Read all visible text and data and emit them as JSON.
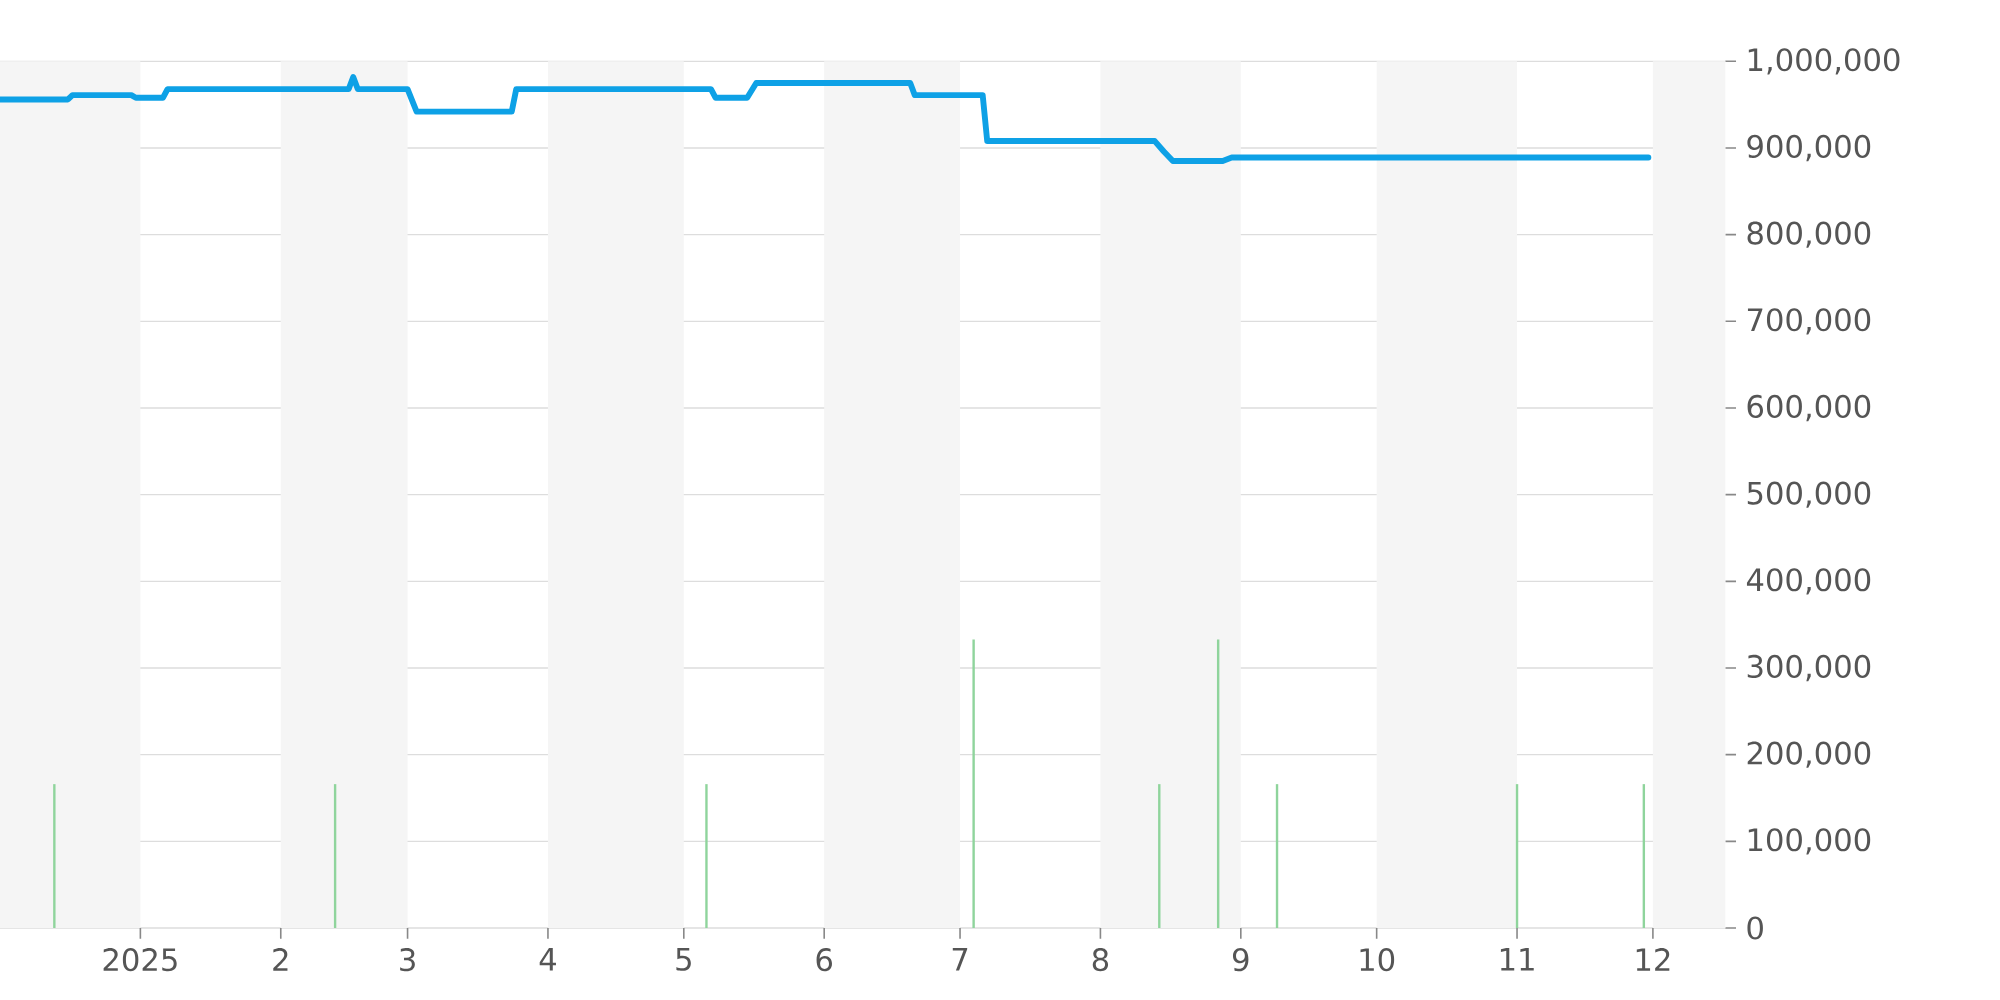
{
  "chart_data": {
    "type": "line",
    "xlim": [
      "2024-12-01",
      "2025-12-17"
    ],
    "xticks": [
      {
        "value": "2025-01-01",
        "label": "2025"
      },
      {
        "value": "2025-02-01",
        "label": "2"
      },
      {
        "value": "2025-03-01",
        "label": "3"
      },
      {
        "value": "2025-04-01",
        "label": "4"
      },
      {
        "value": "2025-05-01",
        "label": "5"
      },
      {
        "value": "2025-06-01",
        "label": "6"
      },
      {
        "value": "2025-07-01",
        "label": "7"
      },
      {
        "value": "2025-08-01",
        "label": "8"
      },
      {
        "value": "2025-09-01",
        "label": "9"
      },
      {
        "value": "2025-10-01",
        "label": "10"
      },
      {
        "value": "2025-11-01",
        "label": "11"
      },
      {
        "value": "2025-12-01",
        "label": "12"
      }
    ],
    "ylim": [
      0,
      1000000
    ],
    "yticks": [
      0,
      {
        "value": 100000,
        "label": "100,000"
      },
      {
        "value": 200000,
        "label": "200,000"
      },
      {
        "value": 300000,
        "label": "300,000"
      },
      {
        "value": 400000,
        "label": "400,000"
      },
      {
        "value": 500000,
        "label": "500,000"
      },
      {
        "value": 600000,
        "label": "600,000"
      },
      {
        "value": 700000,
        "label": "700,000"
      },
      {
        "value": 800000,
        "label": "800,000"
      },
      {
        "value": 900000,
        "label": "900,000"
      },
      {
        "value": 1000000,
        "label": "1,000,000"
      }
    ],
    "grid": "y",
    "marker": "none",
    "bands": [
      {
        "axis": "x",
        "from": "2024-12-01",
        "to": "2025-01-01",
        "color": "#f5f5f5"
      },
      {
        "axis": "x",
        "from": "2025-02-01",
        "to": "2025-03-01",
        "color": "#f5f5f5"
      },
      {
        "axis": "x",
        "from": "2025-04-01",
        "to": "2025-05-01",
        "color": "#f5f5f5"
      },
      {
        "axis": "x",
        "from": "2025-06-01",
        "to": "2025-07-01",
        "color": "#f5f5f5"
      },
      {
        "axis": "x",
        "from": "2025-08-01",
        "to": "2025-09-01",
        "color": "#f5f5f5"
      },
      {
        "axis": "x",
        "from": "2025-10-01",
        "to": "2025-11-01",
        "color": "#f5f5f5"
      },
      {
        "axis": "x",
        "from": "2025-12-01",
        "to": "2025-12-17",
        "color": "#f5f5f5"
      }
    ],
    "series": [
      {
        "type": "bar",
        "color": "#8fd49c",
        "x": [
          "2024-12-13",
          "2025-02-13",
          "2025-05-06",
          "2025-07-04",
          "2025-08-14",
          "2025-08-27",
          "2025-09-09",
          "2025-11-01",
          "2025-11-29"
        ],
        "values": [
          166000,
          166000,
          166000,
          333000,
          166000,
          333000,
          166000,
          166000,
          166000
        ]
      },
      {
        "color": "#0ea1e6",
        "x": [
          "2024-12-01",
          "2024-12-16",
          "2024-12-17",
          "2024-12-30",
          "2024-12-31",
          "2025-01-06",
          "2025-01-07",
          "2025-02-16",
          "2025-02-17",
          "2025-02-18",
          "2025-03-01",
          "2025-03-03",
          "2025-03-24",
          "2025-03-25",
          "2025-05-07",
          "2025-05-08",
          "2025-05-15",
          "2025-05-17",
          "2025-06-20",
          "2025-06-21",
          "2025-07-06",
          "2025-07-07",
          "2025-08-13",
          "2025-08-15",
          "2025-08-17",
          "2025-08-28",
          "2025-08-30",
          "2025-11-30"
        ],
        "values": [
          956000,
          956000,
          961000,
          961000,
          958000,
          958000,
          968000,
          968000,
          982000,
          968000,
          968000,
          942000,
          942000,
          968000,
          968000,
          958000,
          958000,
          975000,
          975000,
          961000,
          961000,
          908000,
          908000,
          896000,
          885000,
          885000,
          889000,
          889000
        ]
      }
    ]
  }
}
